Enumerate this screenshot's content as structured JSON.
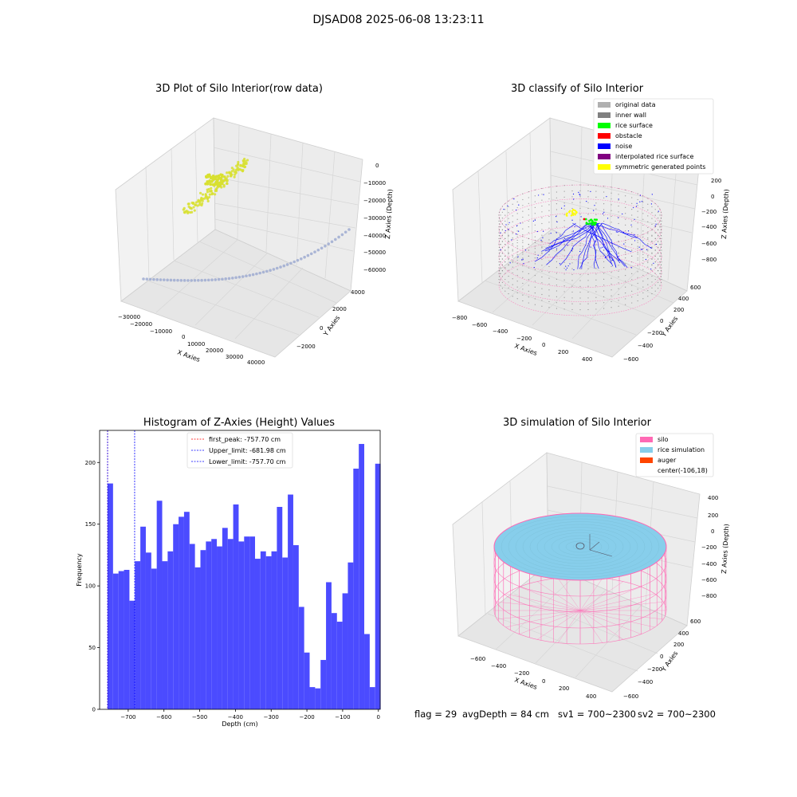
{
  "suptitle": "DJSAD08 2025-06-08 13:23:11",
  "colors": {
    "raw_points": "#d8e030",
    "raw_curve": "#9aa8d0",
    "original": "#b0b0b0",
    "inner_wall": "#808080",
    "rice_surface": "#00ff00",
    "obstacle": "#ff0000",
    "noise": "#0000ff",
    "interpolated": "#800080",
    "symmetric": "#ffff00",
    "silo": "#ff69b4",
    "rice_sim": "#87ceeb",
    "auger": "#ff4500",
    "hist_bar": "#4b4bff",
    "pane": "#f2f2f2",
    "grid": "#d9d9d9"
  },
  "chart_data": [
    {
      "type": "scatter",
      "subtype": "3d",
      "title": "3D Plot of Silo Interior(row data)",
      "xlabel": "X Axies",
      "ylabel": "Y Axies",
      "zlabel": "Z Axies (Depth)",
      "x_ticks": [
        "−30000",
        "−20000",
        "−10000",
        "0",
        "10000",
        "20000",
        "30000",
        "40000"
      ],
      "y_ticks": [
        "−2000",
        "0",
        "2000",
        "4000"
      ],
      "z_ticks": [
        "−60000",
        "−50000",
        "−40000",
        "−30000",
        "−20000",
        "−10000",
        "0"
      ]
    },
    {
      "type": "scatter",
      "subtype": "3d",
      "title": "3D classify of Silo Interior",
      "xlabel": "X Axies",
      "ylabel": "Y Axies",
      "zlabel": "Z Axies (Depth)",
      "x_ticks": [
        "−800",
        "−600",
        "−400",
        "−200",
        "0",
        "200",
        "400"
      ],
      "y_ticks": [
        "−600",
        "−400",
        "−200",
        "0",
        "200",
        "400",
        "600"
      ],
      "z_ticks": [
        "−800",
        "−600",
        "−400",
        "−200",
        "0",
        "200"
      ],
      "legend": [
        "original data",
        "inner wall",
        "rice surface",
        "obstacle",
        "noise",
        "interpolated rice surface",
        "symmetric generated points"
      ]
    },
    {
      "type": "bar",
      "subtype": "histogram",
      "title": "Histogram of Z-Axies (Height) Values",
      "xlabel": "Depth (cm)",
      "ylabel": "Frequency",
      "xlim": [
        -780,
        5
      ],
      "ylim": [
        0,
        226
      ],
      "bin_start": -757.7,
      "bin_width": 15.28,
      "values": [
        183,
        110,
        112,
        113,
        88,
        120,
        148,
        127,
        114,
        169,
        120,
        128,
        150,
        156,
        160,
        134,
        115,
        129,
        136,
        138,
        132,
        147,
        138,
        166,
        136,
        140,
        140,
        122,
        128,
        124,
        128,
        164,
        123,
        174,
        133,
        83,
        46,
        18,
        17,
        40,
        103,
        78,
        71,
        94,
        119,
        195,
        215,
        61,
        18,
        199
      ],
      "x_ticks": [
        -700,
        -600,
        -500,
        -400,
        -300,
        -200,
        -100,
        0
      ],
      "y_ticks": [
        0,
        50,
        100,
        150,
        200
      ],
      "vlines": [
        {
          "x": -757.7,
          "label": "first_peak: -757.70 cm",
          "color": "#ff0000"
        },
        {
          "x": -681.98,
          "label": "Upper_limit: -681.98 cm",
          "color": "#0000ff"
        },
        {
          "x": -757.7,
          "label": "Lower_limit: -757.70 cm",
          "color": "#0000ff"
        }
      ]
    },
    {
      "type": "scatter",
      "subtype": "3d",
      "title": "3D simulation of Silo Interior",
      "xlabel": "X Axies",
      "ylabel": "Y Axies",
      "zlabel": "Z Axies (Depth)",
      "x_ticks": [
        "−600",
        "−400",
        "−200",
        "0",
        "200",
        "400"
      ],
      "y_ticks": [
        "−600",
        "−400",
        "−200",
        "0",
        "200",
        "400",
        "600"
      ],
      "z_ticks": [
        "−800",
        "−600",
        "−400",
        "−200",
        "0",
        "200",
        "400"
      ],
      "legend": [
        "silo",
        "rice simulation",
        "auger",
        "center(-106,18)"
      ]
    }
  ],
  "status": {
    "flag": "flag = 29",
    "avg_depth": "avgDepth = 84 cm",
    "sv1": "sv1 = 700~2300",
    "sv2": "sv2 = 700~2300"
  }
}
